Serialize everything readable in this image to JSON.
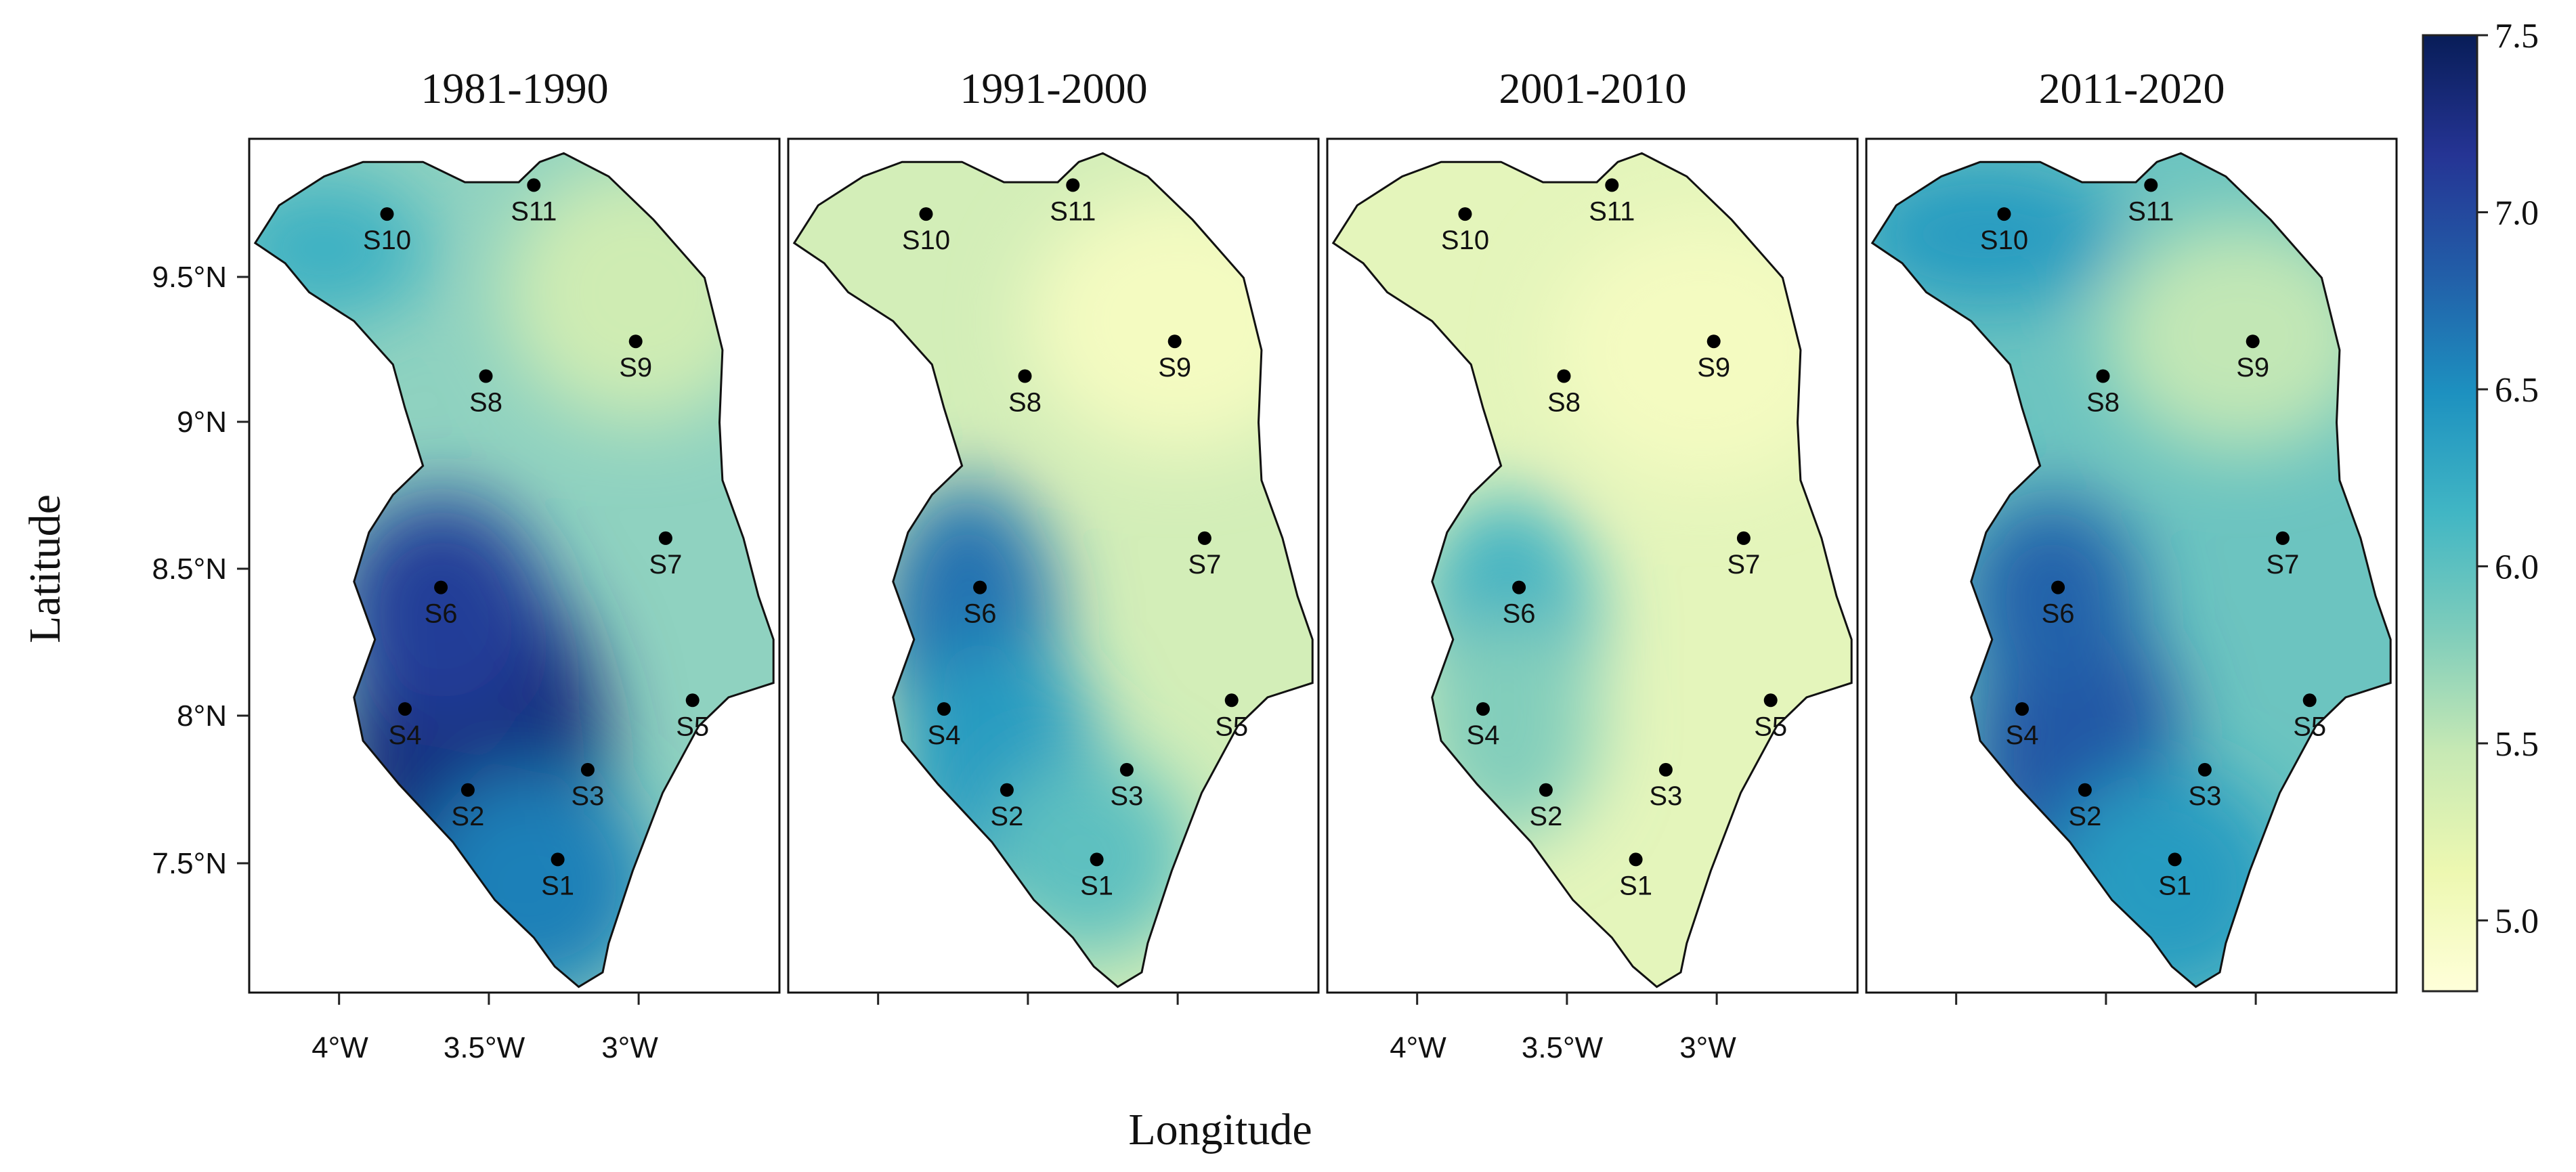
{
  "figure": {
    "panel_titles": [
      "1981-1990",
      "1991-2000",
      "2001-2010",
      "2011-2020"
    ],
    "xlabel": "Longitude",
    "ylabel": "Latitude",
    "lat_ticks": [
      "9.5°N",
      "9°N",
      "8.5°N",
      "8°N",
      "7.5°N"
    ],
    "lon_ticks": [
      "4°W",
      "3.5°W",
      "3°W"
    ],
    "lon_ticks_shown_on_panels": [
      0,
      2
    ],
    "colorbar_ticks": [
      "7.5",
      "7.0",
      "6.5",
      "6.0",
      "5.5",
      "5.0"
    ],
    "colorbar_range": [
      4.8,
      7.5
    ],
    "colorbar_colors": [
      "#ffffd9",
      "#edf8b1",
      "#c7e9b4",
      "#7fcdbb",
      "#41b6c4",
      "#1d91c0",
      "#225ea8",
      "#253494",
      "#081d58"
    ]
  },
  "stations": [
    {
      "id": "S1",
      "lon": -3.27,
      "lat": 7.49
    },
    {
      "id": "S2",
      "lon": -3.57,
      "lat": 7.73
    },
    {
      "id": "S3",
      "lon": -3.17,
      "lat": 7.8
    },
    {
      "id": "S4",
      "lon": -3.78,
      "lat": 8.01
    },
    {
      "id": "S5",
      "lon": -2.82,
      "lat": 8.04
    },
    {
      "id": "S6",
      "lon": -3.66,
      "lat": 8.43
    },
    {
      "id": "S7",
      "lon": -2.91,
      "lat": 8.6
    },
    {
      "id": "S8",
      "lon": -3.51,
      "lat": 9.16
    },
    {
      "id": "S9",
      "lon": -3.01,
      "lat": 9.28
    },
    {
      "id": "S10",
      "lon": -3.84,
      "lat": 9.72
    },
    {
      "id": "S11",
      "lon": -3.35,
      "lat": 9.82
    }
  ],
  "panels": [
    {
      "period": "1981-1990",
      "background": "#8fd2c0",
      "hotspots": [
        {
          "lon": -3.55,
          "lat": 7.8,
          "value": 7.3,
          "rx": 0.45,
          "ry": 0.75
        },
        {
          "lon": -3.66,
          "lat": 8.35,
          "value": 7.1,
          "rx": 0.35,
          "ry": 0.4
        },
        {
          "lon": -3.35,
          "lat": 7.4,
          "value": 6.6,
          "rx": 0.4,
          "ry": 0.4
        },
        {
          "lon": -4.05,
          "lat": 9.6,
          "value": 6.2,
          "rx": 0.35,
          "ry": 0.25
        }
      ],
      "coldspots": [
        {
          "lon": -3.0,
          "lat": 9.45,
          "value": 5.4,
          "rx": 0.45,
          "ry": 0.45
        }
      ]
    },
    {
      "period": "1991-2000",
      "background": "#d3eeb8",
      "hotspots": [
        {
          "lon": -3.7,
          "lat": 8.3,
          "value": 6.7,
          "rx": 0.3,
          "ry": 0.5
        },
        {
          "lon": -3.6,
          "lat": 7.8,
          "value": 6.4,
          "rx": 0.35,
          "ry": 0.45
        },
        {
          "lon": -3.3,
          "lat": 7.5,
          "value": 6.0,
          "rx": 0.35,
          "ry": 0.35
        }
      ],
      "coldspots": [
        {
          "lon": -3.0,
          "lat": 9.35,
          "value": 5.0,
          "rx": 0.5,
          "ry": 0.45
        }
      ]
    },
    {
      "period": "2001-2010",
      "background": "#e4f5bb",
      "hotspots": [
        {
          "lon": -3.7,
          "lat": 8.3,
          "value": 6.2,
          "rx": 0.3,
          "ry": 0.45
        },
        {
          "lon": -3.7,
          "lat": 7.95,
          "value": 5.8,
          "rx": 0.3,
          "ry": 0.4
        }
      ],
      "coldspots": [
        {
          "lon": -3.05,
          "lat": 9.25,
          "value": 5.0,
          "rx": 0.5,
          "ry": 0.45
        }
      ]
    },
    {
      "period": "2011-2020",
      "background": "#6cc4c0",
      "hotspots": [
        {
          "lon": -3.6,
          "lat": 7.85,
          "value": 6.9,
          "rx": 0.35,
          "ry": 0.55
        },
        {
          "lon": -3.68,
          "lat": 8.4,
          "value": 6.8,
          "rx": 0.3,
          "ry": 0.35
        },
        {
          "lon": -3.9,
          "lat": 9.65,
          "value": 6.4,
          "rx": 0.45,
          "ry": 0.25
        },
        {
          "lon": -3.3,
          "lat": 7.4,
          "value": 6.4,
          "rx": 0.4,
          "ry": 0.4
        }
      ],
      "coldspots": [
        {
          "lon": -3.05,
          "lat": 9.3,
          "value": 5.5,
          "rx": 0.45,
          "ry": 0.4
        }
      ]
    }
  ],
  "region_outline": [
    [
      -3.92,
      9.9
    ],
    [
      -3.72,
      9.9
    ],
    [
      -3.58,
      9.83
    ],
    [
      -3.4,
      9.83
    ],
    [
      -3.33,
      9.9
    ],
    [
      -3.25,
      9.93
    ],
    [
      -3.1,
      9.85
    ],
    [
      -2.95,
      9.7
    ],
    [
      -2.78,
      9.5
    ],
    [
      -2.72,
      9.25
    ],
    [
      -2.73,
      9.0
    ],
    [
      -2.72,
      8.8
    ],
    [
      -2.65,
      8.6
    ],
    [
      -2.6,
      8.4
    ],
    [
      -2.55,
      8.25
    ],
    [
      -2.55,
      8.1
    ],
    [
      -2.7,
      8.05
    ],
    [
      -2.8,
      7.95
    ],
    [
      -2.92,
      7.72
    ],
    [
      -3.02,
      7.45
    ],
    [
      -3.1,
      7.2
    ],
    [
      -3.12,
      7.1
    ],
    [
      -3.2,
      7.05
    ],
    [
      -3.28,
      7.12
    ],
    [
      -3.35,
      7.22
    ],
    [
      -3.48,
      7.35
    ],
    [
      -3.62,
      7.55
    ],
    [
      -3.8,
      7.75
    ],
    [
      -3.92,
      7.9
    ],
    [
      -3.95,
      8.05
    ],
    [
      -3.88,
      8.25
    ],
    [
      -3.95,
      8.45
    ],
    [
      -3.9,
      8.62
    ],
    [
      -3.82,
      8.75
    ],
    [
      -3.72,
      8.85
    ],
    [
      -3.78,
      9.05
    ],
    [
      -3.82,
      9.2
    ],
    [
      -3.95,
      9.35
    ],
    [
      -4.1,
      9.45
    ],
    [
      -4.18,
      9.55
    ],
    [
      -4.28,
      9.62
    ],
    [
      -4.2,
      9.75
    ],
    [
      -4.05,
      9.85
    ]
  ]
}
